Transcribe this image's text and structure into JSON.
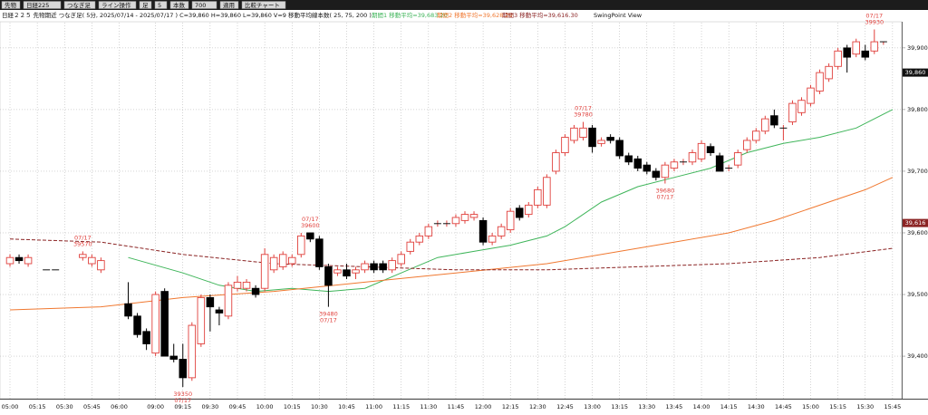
{
  "toolbar": {
    "items": [
      "先物",
      "日経225",
      "つなぎ足",
      "ライン操作",
      "足",
      "5",
      "本数",
      "700",
      "適用",
      "比較チャート"
    ]
  },
  "chart_data": {
    "type": "candlestick",
    "title": "日経２２５ 先物期近 つなぎ足( 5分, 2025/07/14 - 2025/07/17 ) C=39,860 H=39,860 L=39,860 V=9",
    "subtitle": "移動平均線本数( 25, 75, 200 )",
    "view_label": "SwingPoint View",
    "categories": [
      "05:00",
      null,
      null,
      "05:15",
      null,
      null,
      "05:30",
      null,
      null,
      "05:45",
      null,
      null,
      "06:00",
      null,
      null,
      null,
      "09:00",
      null,
      null,
      "09:15",
      null,
      null,
      "09:30",
      null,
      null,
      "09:45",
      null,
      null,
      "10:00",
      null,
      null,
      "10:15",
      null,
      null,
      "10:30",
      null,
      null,
      "10:45",
      null,
      null,
      "11:00",
      null,
      null,
      "11:15",
      null,
      null,
      "11:30",
      null,
      null,
      "11:45",
      null,
      null,
      "12:00",
      null,
      null,
      "12:15",
      null,
      null,
      "12:30",
      null,
      null,
      "12:45",
      null,
      null,
      "13:00",
      null,
      null,
      "13:15",
      null,
      null,
      "13:30",
      null,
      null,
      "13:45",
      null,
      null,
      "14:00",
      null,
      null,
      "14:15",
      null,
      null,
      "14:30",
      null,
      null,
      "14:45",
      null,
      null,
      "15:00",
      null,
      null,
      "15:15",
      null,
      null,
      "15:30",
      null,
      null,
      "15:45"
    ],
    "open": [
      39550,
      39560,
      39550,
      null,
      39540,
      39540,
      null,
      null,
      39560,
      39550,
      39540,
      null,
      null,
      39485,
      39465,
      39440,
      39405,
      39505,
      39400,
      39395,
      39365,
      39420,
      39495,
      39475,
      39465,
      39510,
      39510,
      39510,
      39510,
      39540,
      39545,
      39550,
      39565,
      39600,
      39590,
      39545,
      39535,
      39540,
      39535,
      39540,
      39550,
      39550,
      39540,
      39550,
      39570,
      39585,
      39595,
      39615,
      39615,
      39615,
      39620,
      39625,
      39620,
      39585,
      39595,
      39605,
      39640,
      39630,
      39645,
      39645,
      39700,
      39730,
      39750,
      39755,
      39770,
      39745,
      39755,
      39750,
      39725,
      39720,
      39710,
      39700,
      39690,
      39705,
      39715,
      39715,
      39720,
      39740,
      39725,
      39705,
      39710,
      39735,
      39750,
      39765,
      39790,
      39770,
      39780,
      39795,
      39810,
      39830,
      39850,
      39870,
      39900,
      39890,
      39895,
      39895,
      39910,
      null
    ],
    "high": [
      39565,
      39565,
      39565,
      null,
      39540,
      39540,
      null,
      null,
      39570,
      39565,
      39560,
      null,
      null,
      39520,
      39470,
      39445,
      39505,
      39510,
      39420,
      39420,
      39455,
      39500,
      39500,
      39480,
      39520,
      39530,
      39525,
      39515,
      39575,
      39565,
      39570,
      39565,
      39600,
      39600,
      39595,
      39550,
      39545,
      39550,
      39545,
      39555,
      39555,
      39555,
      39560,
      39570,
      39590,
      39600,
      39615,
      39620,
      39620,
      39630,
      39635,
      39635,
      39625,
      39600,
      39615,
      39640,
      39645,
      39650,
      39675,
      39695,
      39735,
      39760,
      39775,
      39780,
      39775,
      39755,
      39760,
      39755,
      39730,
      39725,
      39715,
      39705,
      39715,
      39720,
      39720,
      39735,
      39750,
      39745,
      39730,
      39710,
      39735,
      39755,
      39770,
      39790,
      39800,
      39775,
      39815,
      39820,
      39840,
      39865,
      39875,
      39900,
      39905,
      39915,
      39905,
      39930,
      39910,
      null
    ],
    "low": [
      39545,
      39550,
      39545,
      null,
      39540,
      39540,
      null,
      null,
      39555,
      39545,
      39535,
      null,
      null,
      39460,
      39430,
      39410,
      39400,
      39400,
      39390,
      39350,
      39360,
      39415,
      39440,
      39450,
      39460,
      39505,
      39505,
      39495,
      39505,
      39535,
      39540,
      39545,
      39560,
      39585,
      39540,
      39480,
      39530,
      39525,
      39525,
      39535,
      39535,
      39535,
      39535,
      39545,
      39565,
      39580,
      39590,
      39610,
      39610,
      39610,
      39615,
      39620,
      39580,
      39580,
      39590,
      39600,
      39620,
      39625,
      39640,
      39640,
      39695,
      39725,
      39745,
      39750,
      39730,
      39740,
      39745,
      39720,
      39710,
      39700,
      39695,
      39685,
      39680,
      39700,
      39710,
      39710,
      39715,
      39725,
      39700,
      39700,
      39705,
      39730,
      39745,
      39760,
      39770,
      39750,
      39775,
      39790,
      39805,
      39825,
      39845,
      39865,
      39860,
      39885,
      39880,
      39890,
      39905,
      null
    ],
    "close": [
      39560,
      39555,
      39560,
      null,
      39540,
      39540,
      null,
      null,
      39565,
      39560,
      39555,
      null,
      null,
      39465,
      39435,
      39420,
      39500,
      39400,
      39395,
      39365,
      39450,
      39495,
      39480,
      39470,
      39515,
      39520,
      39520,
      39500,
      39565,
      39560,
      39565,
      39560,
      39595,
      39590,
      39545,
      39515,
      39540,
      39530,
      39540,
      39550,
      39540,
      39540,
      39555,
      39565,
      39585,
      39595,
      39610,
      39615,
      39615,
      39625,
      39630,
      39630,
      39585,
      39595,
      39610,
      39635,
      39625,
      39645,
      39670,
      39690,
      39730,
      39755,
      39770,
      39770,
      39740,
      39750,
      39750,
      39725,
      39715,
      39705,
      39700,
      39690,
      39710,
      39715,
      39715,
      39730,
      39745,
      39730,
      39700,
      39705,
      39730,
      39750,
      39765,
      39785,
      39775,
      39770,
      39810,
      39815,
      39835,
      39860,
      39870,
      39895,
      39885,
      39910,
      39885,
      39910,
      39910,
      null
    ],
    "up_color": "#e0403c",
    "down_color": "#000000",
    "ylim": [
      39331,
      39941
    ],
    "yticks": [
      {
        "value": 39400,
        "label": "39,400"
      },
      {
        "value": 39500,
        "label": "39,500"
      },
      {
        "value": 39600,
        "label": "39,600"
      },
      {
        "value": 39700,
        "label": "39,700"
      },
      {
        "value": 39800,
        "label": "39,800"
      },
      {
        "value": 39900,
        "label": "39,900"
      }
    ],
    "grid": true,
    "series": [
      {
        "name": "期間1 移動平均=39,683.20",
        "color": "#3fb55a",
        "dash": false,
        "x": [
          13,
          19,
          23,
          27,
          31,
          35,
          39,
          43,
          47,
          51,
          55,
          59,
          61,
          65,
          69,
          73,
          77,
          81,
          85,
          89,
          93,
          97
        ],
        "values": [
          39560,
          39535,
          39515,
          39505,
          39510,
          39505,
          39510,
          39535,
          39560,
          39570,
          39580,
          39595,
          39610,
          39650,
          39675,
          39690,
          39705,
          39730,
          39745,
          39755,
          39770,
          39800
        ]
      },
      {
        "name": "期間2 移動平均=39,628.29",
        "color": "#f07830",
        "dash": false,
        "x": [
          0,
          10,
          19,
          29,
          39,
          49,
          59,
          69,
          79,
          84,
          89,
          94,
          97
        ],
        "values": [
          39475,
          39480,
          39495,
          39505,
          39520,
          39535,
          39550,
          39575,
          39600,
          39620,
          39645,
          39670,
          39690
        ]
      },
      {
        "name": "期間3 移動平均=39,616.30",
        "color": "#8b2424",
        "dash": true,
        "x": [
          0,
          10,
          19,
          29,
          39,
          49,
          59,
          69,
          79,
          89,
          97
        ],
        "values": [
          39590,
          39585,
          39565,
          39550,
          39545,
          39540,
          39540,
          39545,
          39550,
          39560,
          39575
        ]
      }
    ],
    "price_tags": [
      {
        "value": 39860,
        "label": "39,860",
        "color": "#111111"
      },
      {
        "value": 39616,
        "label": "39,616",
        "color": "#8b2424"
      }
    ],
    "annotations": [
      {
        "index": 8,
        "date": "07/17",
        "price": 39570,
        "side": "above"
      },
      {
        "index": 33,
        "date": "07/17",
        "price": 39600,
        "side": "above"
      },
      {
        "index": 35,
        "date": "07/17",
        "price": 39480,
        "side": "below"
      },
      {
        "index": 19,
        "date": "07/17",
        "price": 39350,
        "side": "below"
      },
      {
        "index": 63,
        "date": "07/17",
        "price": 39780,
        "side": "above"
      },
      {
        "index": 72,
        "date": "07/17",
        "price": 39680,
        "side": "below"
      },
      {
        "index": 95,
        "date": "07/17",
        "price": 39930,
        "side": "above"
      }
    ]
  }
}
